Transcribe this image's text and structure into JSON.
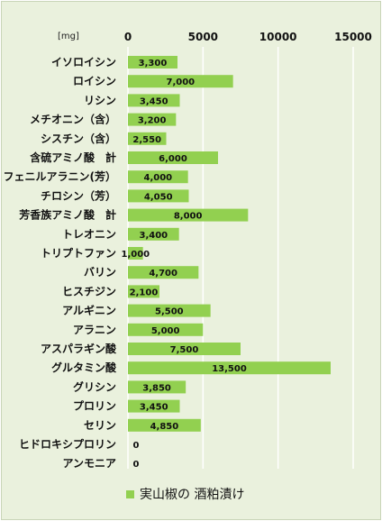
{
  "chart_data": {
    "type": "bar",
    "orientation": "horizontal",
    "unit": "[mg]",
    "categories": [
      "イソロイシン",
      "ロイシン",
      "リシン",
      "メチオニン（含）",
      "シスチン（含）",
      "含硫アミノ酸　計",
      "フェニルアラニン(芳）",
      "チロシン（芳）",
      "芳香族アミノ酸　計",
      "トレオニン",
      "トリプトファン",
      "バリン",
      "ヒスチジン",
      "アルギニン",
      "アラニン",
      "アスパラギン酸",
      "グルタミン酸",
      "グリシン",
      "プロリン",
      "セリン",
      "ヒドロキシプロリン",
      "アンモニア"
    ],
    "series": [
      {
        "name": "実山椒の 酒粕漬け",
        "values": [
          3300,
          7000,
          3450,
          3200,
          2550,
          6000,
          4000,
          4050,
          8000,
          3400,
          1000,
          4700,
          2100,
          5500,
          5000,
          7500,
          13500,
          3850,
          3450,
          4850,
          0,
          0
        ],
        "labels": [
          "3,300",
          "7,000",
          "3,450",
          "3,200",
          "2,550",
          "6,000",
          "4,000",
          "4,050",
          "8,000",
          "3,400",
          "1,000",
          "4,700",
          "2,100",
          "5,500",
          "5,000",
          "7,500",
          "13,500",
          "3,850",
          "3,450",
          "4,850",
          "0",
          "0"
        ]
      }
    ],
    "xticks": [
      "0",
      "5000",
      "10000",
      "15000"
    ],
    "xlim": [
      0,
      15000
    ],
    "grid": true,
    "legend_position": "bottom",
    "colors": {
      "bar": "#92d050",
      "background": "#eaf1dd",
      "grid": "#ffffff"
    }
  }
}
